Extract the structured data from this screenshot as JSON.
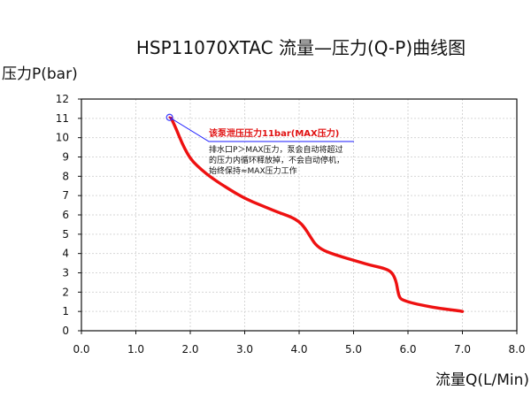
{
  "chart_data": {
    "type": "line",
    "title": "HSP11070XTAC 流量—压力(Q-P)曲线图",
    "ylabel": "压力P(bar)",
    "xlabel": "流量Q(L/Min)",
    "xlim": [
      0,
      8
    ],
    "ylim": [
      0,
      12
    ],
    "x_ticks": [
      "0.0",
      "1.0",
      "2.0",
      "3.0",
      "4.0",
      "5.0",
      "6.0",
      "7.0",
      "8.0"
    ],
    "y_ticks": [
      "0",
      "1",
      "2",
      "3",
      "4",
      "5",
      "6",
      "7",
      "8",
      "9",
      "10",
      "11",
      "12"
    ],
    "grid": true,
    "colors": {
      "curve": "#ee1111",
      "annotation_line": "#1a1aff",
      "annotation_title": "#e01010"
    },
    "series": [
      {
        "x": [
          1.65,
          1.75,
          1.85,
          1.95,
          2.05,
          2.2,
          2.4,
          2.7,
          3.0,
          3.3,
          3.6,
          3.85,
          4.0,
          4.1,
          4.2,
          4.3,
          4.45,
          4.7,
          5.0,
          5.3,
          5.55,
          5.7,
          5.78,
          5.82,
          5.85,
          5.9,
          6.05,
          6.3,
          6.6,
          6.9,
          7.0
        ],
        "y": [
          11.0,
          10.4,
          9.7,
          9.15,
          8.75,
          8.35,
          7.9,
          7.35,
          6.85,
          6.5,
          6.15,
          5.9,
          5.65,
          5.35,
          4.9,
          4.45,
          4.15,
          3.9,
          3.65,
          3.4,
          3.25,
          3.05,
          2.6,
          1.95,
          1.7,
          1.6,
          1.45,
          1.3,
          1.15,
          1.05,
          1.0
        ]
      }
    ],
    "marker": {
      "x": 1.62,
      "y": 11.05
    },
    "annotation": {
      "anchor": {
        "x": 1.62,
        "y": 11.05
      },
      "title": "该泵泄压压力11bar(MAX压力)",
      "lines": [
        "排水口P＞MAX压力，泵会自动将超过",
        "的压力内循环释放掉，不会自动停机，",
        "始终保持≈MAX压力工作"
      ]
    }
  }
}
